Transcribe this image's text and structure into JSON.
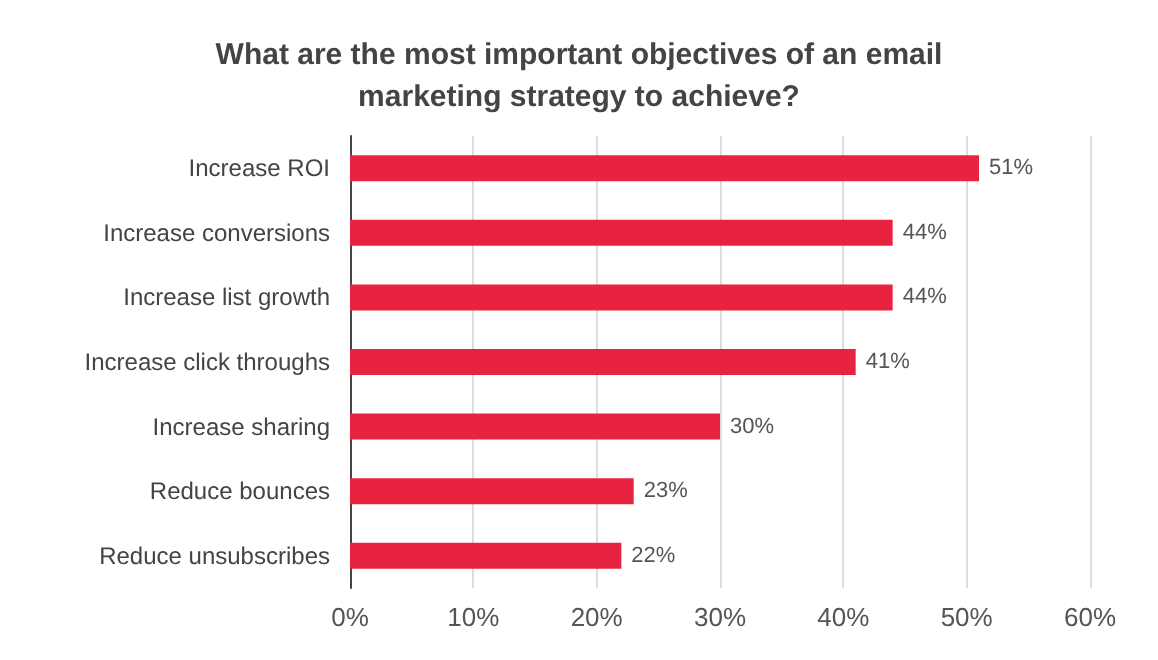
{
  "chart_data": {
    "type": "bar",
    "orientation": "horizontal",
    "title": "What are the most important objectives of an email\nmarketing strategy to achieve?",
    "categories": [
      "Increase ROI",
      "Increase conversions",
      "Increase list growth",
      "Increase click throughs",
      "Increase sharing",
      "Reduce bounces",
      "Reduce unsubscribes"
    ],
    "values": [
      51,
      44,
      44,
      41,
      30,
      23,
      22
    ],
    "value_labels": [
      "51%",
      "44%",
      "44%",
      "41%",
      "30%",
      "23%",
      "22%"
    ],
    "color": "#e8233f",
    "xlim": [
      0,
      60
    ],
    "xticks": [
      {
        "value": 0,
        "label": "0%"
      },
      {
        "value": 10,
        "label": "10%"
      },
      {
        "value": 20,
        "label": "20%"
      },
      {
        "value": 30,
        "label": "30%"
      },
      {
        "value": 40,
        "label": "40%"
      },
      {
        "value": 50,
        "label": "50%"
      },
      {
        "value": 60,
        "label": "60%"
      }
    ],
    "grid": "x"
  }
}
